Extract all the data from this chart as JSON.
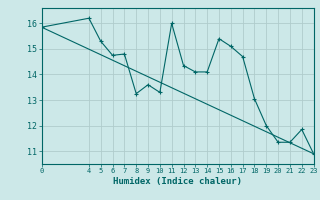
{
  "xlabel": "Humidex (Indice chaleur)",
  "bg_color": "#cce8e8",
  "grid_color": "#b0cccc",
  "line_color": "#006666",
  "xlim": [
    0,
    23
  ],
  "ylim": [
    10.5,
    16.6
  ],
  "yticks": [
    11,
    12,
    13,
    14,
    15,
    16
  ],
  "xticks": [
    0,
    4,
    5,
    6,
    7,
    8,
    9,
    10,
    11,
    12,
    13,
    14,
    15,
    16,
    17,
    18,
    19,
    20,
    21,
    22,
    23
  ],
  "data_x": [
    0,
    4,
    5,
    6,
    7,
    8,
    9,
    10,
    11,
    12,
    13,
    14,
    15,
    16,
    17,
    18,
    19,
    20,
    21,
    22,
    23
  ],
  "data_y": [
    15.85,
    16.2,
    15.3,
    14.75,
    14.8,
    13.25,
    13.6,
    13.3,
    16.0,
    14.35,
    14.1,
    14.1,
    15.4,
    15.1,
    14.7,
    13.05,
    12.0,
    11.35,
    11.35,
    11.85,
    10.9
  ],
  "trend_x": [
    0,
    23
  ],
  "trend_y": [
    15.85,
    10.9
  ]
}
